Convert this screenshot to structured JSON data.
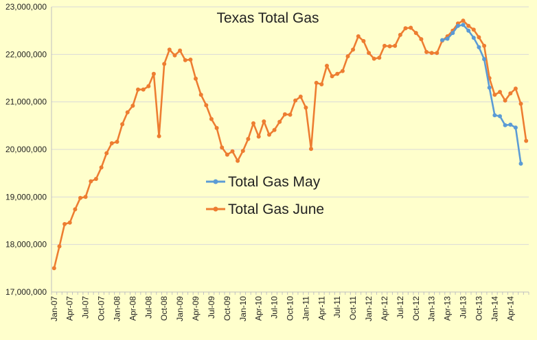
{
  "chart_data": {
    "type": "line",
    "title": "Texas Total Gas",
    "xlabel": "",
    "ylabel": "",
    "ylim": [
      17000000,
      23000000
    ],
    "y_ticks": [
      17000000,
      18000000,
      19000000,
      20000000,
      21000000,
      22000000,
      23000000
    ],
    "y_tick_labels": [
      "17,000,000",
      "18,000,000",
      "19,000,000",
      "20,000,000",
      "21,000,000",
      "22,000,000",
      "23,000,000"
    ],
    "x_tick_labels": [
      "Jan-07",
      "Apr-07",
      "Jul-07",
      "Oct-07",
      "Jan-08",
      "Apr-08",
      "Jul-08",
      "Oct-08",
      "Jan-09",
      "Apr-09",
      "Jul-09",
      "Oct-09",
      "Jan-10",
      "Apr-10",
      "Jul-10",
      "Oct-10",
      "Jan-11",
      "Apr-11",
      "Jul-11",
      "Oct-11",
      "Jan-12",
      "Apr-12",
      "Jul-12",
      "Oct-12",
      "Jan-13",
      "Apr-13",
      "Jul-13",
      "Oct-13",
      "Jan-14",
      "Apr-14"
    ],
    "grid": true,
    "legend_position": "center",
    "series": [
      {
        "name": "Total Gas May",
        "color": "#5B9BD5",
        "start_index": 74,
        "values": [
          22300000,
          22330000,
          22450000,
          22600000,
          22620000,
          22500000,
          22350000,
          22150000,
          21900000,
          21300000,
          20720000,
          20700000,
          20510000,
          20520000,
          20460000,
          19700000
        ]
      },
      {
        "name": "Total Gas June",
        "color": "#ED7D31",
        "start_index": 0,
        "values": [
          17500000,
          17960000,
          18430000,
          18460000,
          18740000,
          18980000,
          19000000,
          19330000,
          19380000,
          19620000,
          19920000,
          20130000,
          20160000,
          20530000,
          20780000,
          20920000,
          21260000,
          21260000,
          21330000,
          21590000,
          20280000,
          21800000,
          22100000,
          21980000,
          22080000,
          21880000,
          21890000,
          21490000,
          21150000,
          20930000,
          20640000,
          20450000,
          20040000,
          19890000,
          19960000,
          19760000,
          19970000,
          20220000,
          20550000,
          20270000,
          20590000,
          20310000,
          20410000,
          20580000,
          20740000,
          20730000,
          21030000,
          21110000,
          20880000,
          20010000,
          21400000,
          21370000,
          21760000,
          21540000,
          21590000,
          21650000,
          21960000,
          22100000,
          22380000,
          22280000,
          22030000,
          21910000,
          21930000,
          22180000,
          22170000,
          22180000,
          22410000,
          22550000,
          22560000,
          22450000,
          22320000,
          22050000,
          22030000,
          22030000,
          22290000,
          22380000,
          22500000,
          22650000,
          22710000,
          22600000,
          22520000,
          22360000,
          22180000,
          21500000,
          21150000,
          21210000,
          21030000,
          21180000,
          21280000,
          20960000,
          20180000
        ]
      }
    ]
  }
}
